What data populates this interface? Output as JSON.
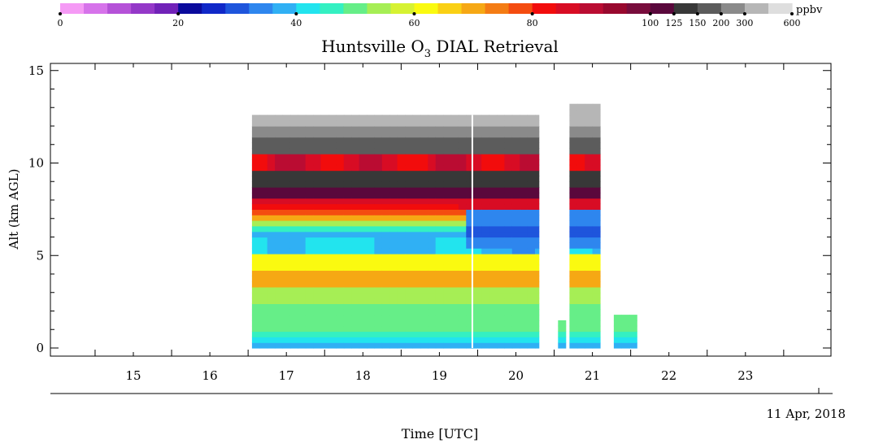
{
  "chart_data": {
    "type": "heatmap",
    "title_main": "Huntsville O",
    "title_sub": "3",
    "title_rest": " DIAL Retrieval",
    "ylabel": "Alt (km AGL)",
    "xlabel": "Time [UTC]",
    "date_label": "11 Apr, 2018",
    "ylim": [
      0,
      15
    ],
    "xlim": [
      14,
      24
    ],
    "y_ticks": [
      0,
      5,
      10,
      15
    ],
    "x_ticks": [
      15,
      16,
      17,
      18,
      19,
      20,
      21,
      22,
      23
    ],
    "colorbar": {
      "unit": "ppbv",
      "labels": [
        "0",
        "20",
        "40",
        "60",
        "80",
        "100",
        "125",
        "150",
        "200",
        "300",
        "600"
      ],
      "colors": [
        "#f59af5",
        "#d673ea",
        "#b552d8",
        "#9438c8",
        "#7122b8",
        "#0a0a9c",
        "#1028c8",
        "#1e55dc",
        "#2e86ee",
        "#30b0f4",
        "#22e4ee",
        "#34f0c2",
        "#66ee88",
        "#a6ee55",
        "#d6f232",
        "#fafa10",
        "#fad014",
        "#f6a814",
        "#f47c14",
        "#f44c10",
        "#f20c0c",
        "#d80c24",
        "#ba0c32",
        "#98082e",
        "#780c3c",
        "#5a083c",
        "#383838",
        "#5c5c5c",
        "#8a8a8a",
        "#b6b6b6",
        "#dedede"
      ]
    },
    "profile_legend": [
      {
        "alt_km": 0.5,
        "ppbv": 44
      },
      {
        "alt_km": 2.5,
        "ppbv": 52
      },
      {
        "alt_km": 4.0,
        "ppbv": 68
      },
      {
        "alt_km": 5.5,
        "ppbv": 38
      },
      {
        "alt_km": 6.8,
        "ppbv": 62
      },
      {
        "alt_km": 8.0,
        "ppbv": 90
      },
      {
        "alt_km": 9.5,
        "ppbv": 120
      },
      {
        "alt_km": 11.0,
        "ppbv": 200
      },
      {
        "alt_km": 12.5,
        "ppbv": 400
      }
    ],
    "data_segments": [
      {
        "start_utc": 16.55,
        "end_utc": 20.3,
        "top_km": 12.6
      },
      {
        "start_utc": 20.55,
        "end_utc": 20.65,
        "top_km": 1.3
      },
      {
        "start_utc": 20.7,
        "end_utc": 21.1,
        "top_km": 13.0
      },
      {
        "start_utc": 21.28,
        "end_utc": 21.58,
        "top_km": 1.6
      }
    ],
    "gap_utc": 19.42
  }
}
